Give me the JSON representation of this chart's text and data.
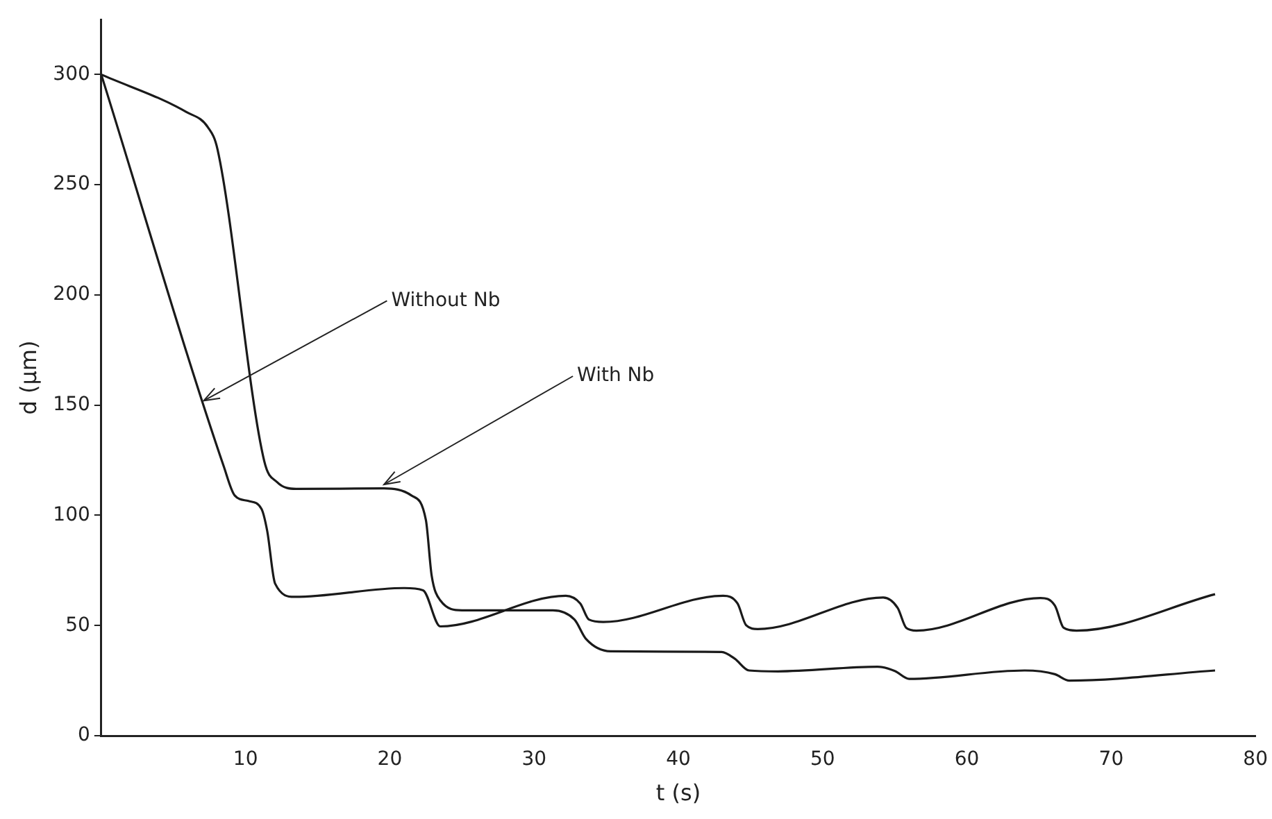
{
  "chart_data": {
    "type": "line",
    "xlabel": "t (s)",
    "ylabel": "d (µm)",
    "xlim": [
      0,
      80
    ],
    "xticks": [
      {
        "value": 0,
        "label": null
      },
      10,
      20,
      30,
      40,
      50,
      60,
      70,
      80
    ],
    "ylim": [
      0,
      325
    ],
    "yticks": [
      0,
      50,
      100,
      150,
      200,
      250,
      300
    ],
    "grid": false,
    "legend": false,
    "marker": "none",
    "line_style": "solid",
    "series": [
      {
        "color": "#1a1a1a",
        "x": [
          0,
          8.5,
          9.25,
          10.2,
          11.1,
          11.5,
          12.05,
          13.4,
          21,
          22.3,
          23.5,
          32.2,
          33.2,
          33.8,
          34.8,
          43.1,
          44.1,
          44.7,
          45.5,
          54.2,
          55.2,
          55.8,
          56.5,
          65.1,
          66.1,
          66.7,
          67.6,
          77.2
        ],
        "values": [
          300,
          122,
          109,
          106.5,
          103,
          93,
          69,
          63,
          67,
          66,
          49.6,
          63.5,
          60,
          52.7,
          51.6,
          63.5,
          60,
          50.1,
          48.4,
          62.7,
          58,
          48.9,
          47.7,
          62.5,
          59,
          49,
          47.7,
          64.2
        ]
      },
      {
        "color": "#1a1a1a",
        "x": [
          0,
          5.9,
          7.4,
          8.06,
          11.3,
          12.2,
          13.5,
          19.6,
          21.5,
          22.5,
          22.9,
          23.5,
          25,
          31.3,
          32.8,
          33.6,
          35.3,
          43,
          43.9,
          44.9,
          46.9,
          53.8,
          55,
          56,
          64,
          66.1,
          67.1,
          77.2
        ],
        "values": [
          300,
          283,
          276,
          266,
          124.5,
          115,
          112,
          112.2,
          109,
          97.9,
          72.7,
          61.4,
          56.9,
          56.9,
          52.7,
          43.9,
          38.3,
          38,
          35,
          29.6,
          29.2,
          31.3,
          29.4,
          25.8,
          29.6,
          27.9,
          25,
          29.6
        ]
      }
    ],
    "annotations": [
      {
        "text": "Without Nb",
        "x": 7.1,
        "y": 152
      },
      {
        "text": "With Nb",
        "x": 19.6,
        "y": 114
      }
    ]
  }
}
